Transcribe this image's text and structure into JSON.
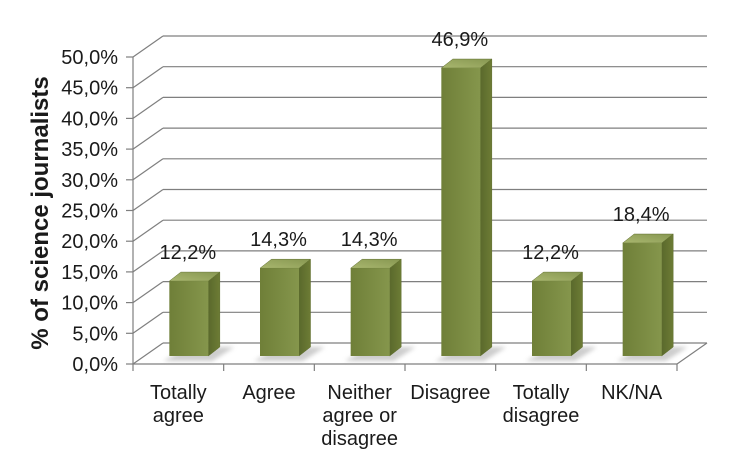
{
  "chart_data": {
    "type": "bar",
    "variant": "3d-column",
    "title": "",
    "xlabel": "",
    "ylabel": "% of science journalists",
    "categories": [
      "Totally agree",
      "Agree",
      "Neither agree or disagree",
      "Disagree",
      "Totally disagree",
      "NK/NA"
    ],
    "category_label_lines": [
      [
        "Totally",
        "agree"
      ],
      [
        "Agree"
      ],
      [
        "Neither",
        "agree or",
        "disagree"
      ],
      [
        "Disagree"
      ],
      [
        "Totally",
        "disagree"
      ],
      [
        "NK/NA"
      ]
    ],
    "values": [
      12.2,
      14.3,
      14.3,
      46.9,
      12.2,
      18.4
    ],
    "data_labels": [
      "12,2%",
      "14,3%",
      "14,3%",
      "46,9%",
      "12,2%",
      "18,4%"
    ],
    "unit": "%",
    "decimal_separator": ",",
    "ylim": [
      0,
      50
    ],
    "y_tick_step": 5,
    "y_tick_values": [
      0,
      5,
      10,
      15,
      20,
      25,
      30,
      35,
      40,
      45,
      50
    ],
    "y_tick_labels": [
      "0,0%",
      "5,0%",
      "10,0%",
      "15,0%",
      "20,0%",
      "25,0%",
      "30,0%",
      "35,0%",
      "40,0%",
      "45,0%",
      "50,0%"
    ],
    "legend": "none",
    "gridlines": "horizontal-3d",
    "colors": {
      "background": "#ffffff",
      "grid": "#7f7f7f",
      "text": "#1a1a1a",
      "bar_front": [
        "#6f7f38",
        "#85964c"
      ],
      "bar_side": [
        "#5a692c",
        "#6d7c35"
      ],
      "bar_top": [
        "#a9b76f",
        "#879751"
      ],
      "edge": "#5f6e2e",
      "shadow": "#9c9c9c"
    }
  }
}
